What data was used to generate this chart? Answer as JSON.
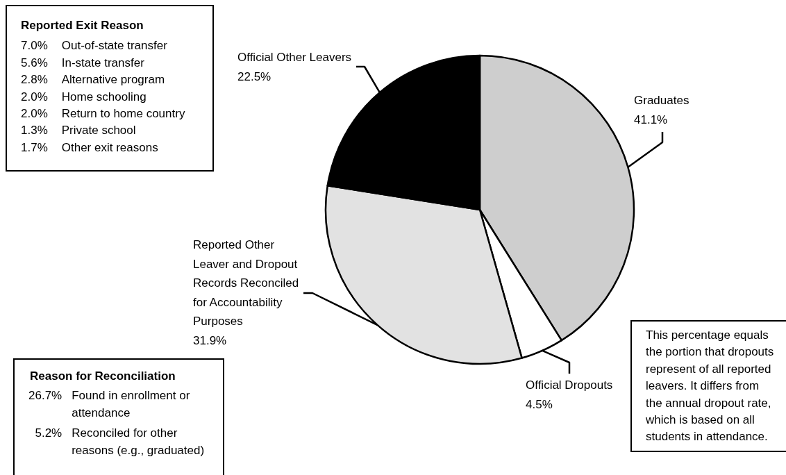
{
  "chart_data": {
    "type": "pie",
    "categories": [
      "Graduates",
      "Official Dropouts",
      "Reported Other Leaver and Dropout Records Reconciled for Accountability Purposes",
      "Official Other Leavers"
    ],
    "values": [
      41.1,
      4.5,
      31.9,
      22.5
    ],
    "value_labels": [
      "41.1%",
      "4.5%",
      "31.9%",
      "22.5%"
    ],
    "colors": [
      "#cecece",
      "#ffffff",
      "#e2e2e2",
      "#000000"
    ],
    "legend": false,
    "annotations": [
      "Reported Exit Reason\n7.0%\tOut-of-state transfer\n5.6%\tIn-state transfer\n2.8%\tAlternative program\n2.0%\tHome schooling\n2.0%\tReturn to home country\n1.3%\tPrivate school\n1.7%\tOther exit reasons",
      "Reason for Reconciliation\n26.7%\tFound in enrollment or attendance\n5.2%\tReconciled for other reasons (e.g., graduated)",
      "This percentage equals the portion that dropouts represent of all reported leavers. It differs from the annual dropout rate, which is based on all students in attendance."
    ]
  }
}
